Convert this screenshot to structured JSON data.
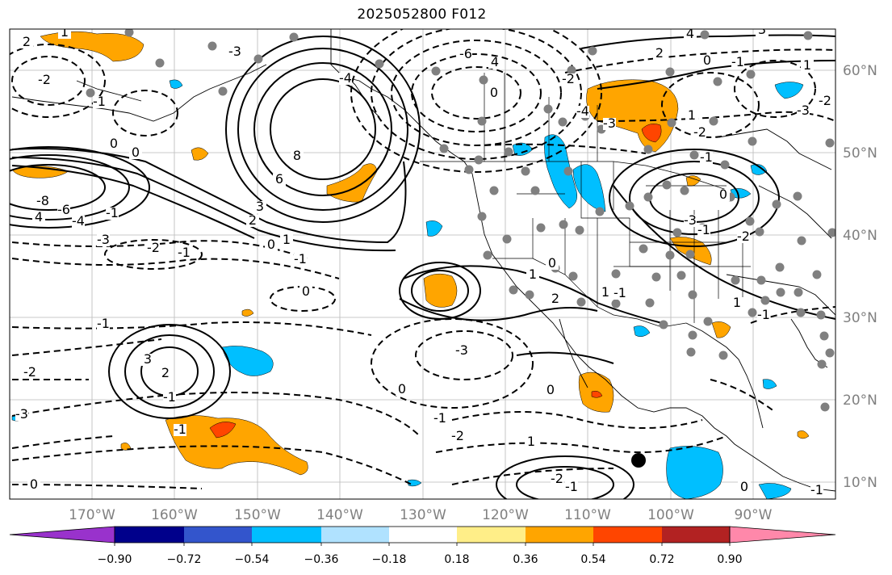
{
  "title": "2025052800 F012",
  "map": {
    "lon_labels": [
      "170°W",
      "160°W",
      "150°W",
      "140°W",
      "130°W",
      "120°W",
      "110°W",
      "100°W",
      "90°W"
    ],
    "lat_labels": [
      "60°N",
      "50°N",
      "40°N",
      "30°N",
      "20°N",
      "10°N"
    ],
    "grid_color": "#b0b0b0",
    "contour_labels": [
      "2",
      "1",
      "4",
      "3",
      "2",
      "1",
      "-3",
      "-4",
      "-6",
      "4",
      "0",
      "0",
      "-1",
      "-2",
      "-1",
      "-2",
      "-3",
      "0",
      "0",
      "8",
      "6",
      "3",
      "2",
      "-1",
      "4",
      "-8",
      "-6",
      "-4",
      "-3",
      "-2",
      "-1",
      "0",
      "1",
      "-1",
      "0",
      "-1",
      "-2",
      "-3",
      "0",
      "-3",
      "-1",
      "-2",
      "0",
      "1",
      "2",
      "1",
      "-1",
      "-2",
      "-3",
      "-4",
      "-2",
      "1",
      "-1",
      "0",
      "-1",
      "-2",
      "-3",
      "3",
      "2",
      "-1",
      "0",
      "1",
      "-2",
      "-1",
      "1",
      "-1",
      "0",
      "-1",
      "-1",
      "0"
    ]
  },
  "colorbar": {
    "colors": [
      "#9932cc",
      "#00008b",
      "#3355cc",
      "#00bfff",
      "#b0e2ff",
      "#ffffff",
      "#ffee88",
      "#ffa500",
      "#ff4500",
      "#b22222",
      "#ff88aa"
    ],
    "ticks": [
      "−0.90",
      "−0.72",
      "−0.54",
      "−0.36",
      "−0.18",
      "0.18",
      "0.36",
      "0.54",
      "0.72",
      "0.90"
    ]
  }
}
